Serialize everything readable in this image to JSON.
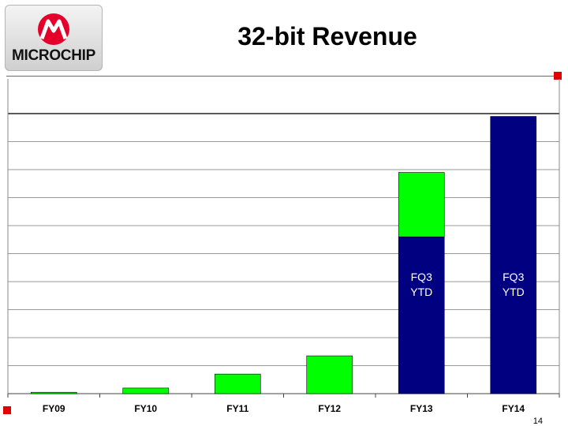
{
  "logo": {
    "text": "MICROCHIP"
  },
  "slide": {
    "title": "32-bit Revenue",
    "page_number": "14"
  },
  "colors": {
    "bar_green": "#00ff00",
    "bar_navy": "#000080",
    "accent_red": "#e00000"
  },
  "chart_data": {
    "type": "bar",
    "stacked": true,
    "title": "32-bit Revenue",
    "xlabel": "",
    "ylabel": "",
    "grid": true,
    "ylim": [
      0,
      100
    ],
    "categories": [
      "FY09",
      "FY10",
      "FY11",
      "FY12",
      "FY13",
      "FY14"
    ],
    "series": [
      {
        "color": "#000080",
        "values": [
          0,
          0,
          0,
          0,
          56,
          99
        ]
      },
      {
        "color": "#00ff00",
        "values": [
          0.5,
          2,
          7,
          13.5,
          23,
          0
        ]
      }
    ],
    "annotations": [
      "FQ3\nYTD",
      "FQ3\nYTD"
    ]
  }
}
